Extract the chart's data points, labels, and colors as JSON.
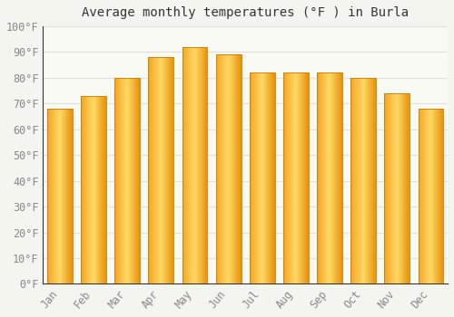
{
  "title": "Average monthly temperatures (°F ) in Burla",
  "months": [
    "Jan",
    "Feb",
    "Mar",
    "Apr",
    "May",
    "Jun",
    "Jul",
    "Aug",
    "Sep",
    "Oct",
    "Nov",
    "Dec"
  ],
  "values": [
    68,
    73,
    80,
    88,
    92,
    89,
    82,
    82,
    82,
    80,
    74,
    68
  ],
  "bar_color_left": "#F5A623",
  "bar_color_center": "#FFD966",
  "bar_color_right": "#E8920A",
  "bar_edge_color": "#C87D00",
  "background_color": "#F5F5F0",
  "plot_bg_color": "#FAFAF5",
  "grid_color": "#E0E0E0",
  "tick_label_color": "#888888",
  "title_color": "#333333",
  "axis_color": "#333333",
  "ylim": [
    0,
    100
  ],
  "ytick_step": 10,
  "ylabel_suffix": "°F",
  "title_fontsize": 10,
  "tick_fontsize": 8.5,
  "bar_width": 0.75
}
